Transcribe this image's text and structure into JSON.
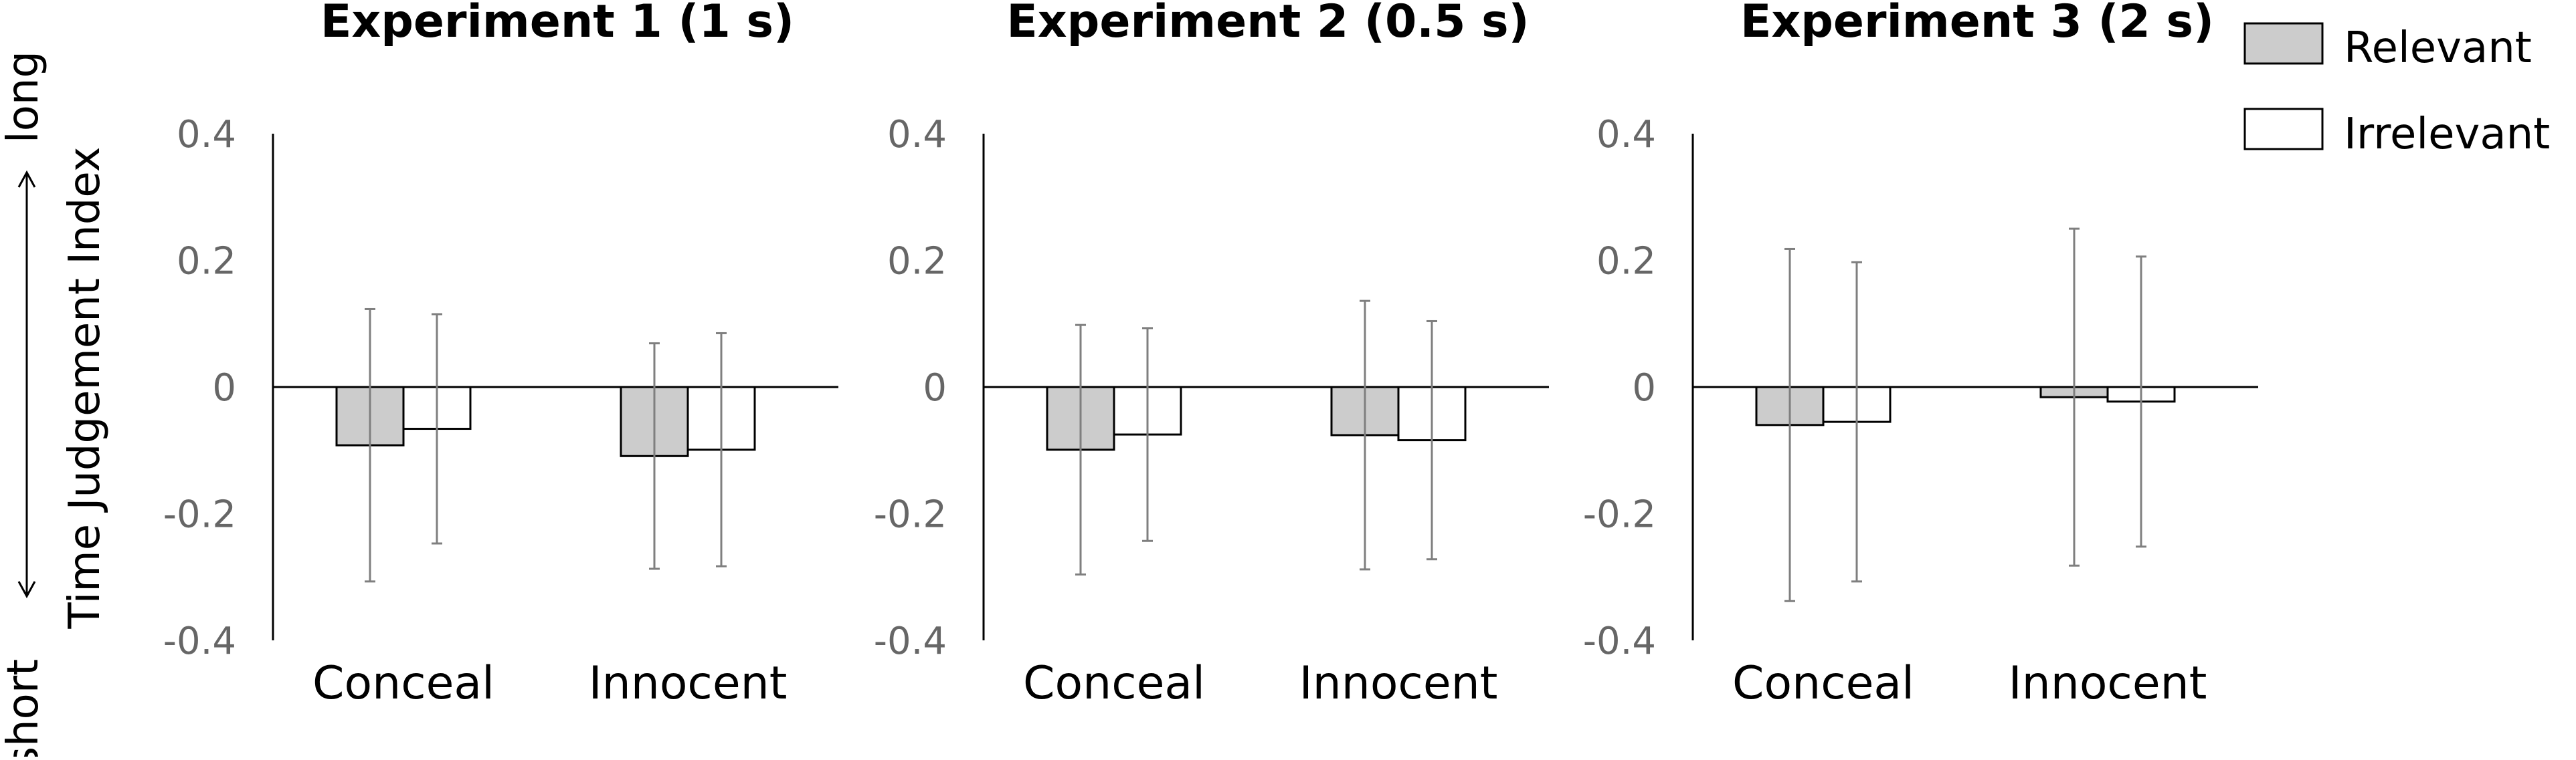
{
  "y_axis": {
    "label": "Time Judgement Index",
    "top_label": "long",
    "bottom_label": "short"
  },
  "legend": [
    {
      "name": "Relevant",
      "color": "#cccccc"
    },
    {
      "name": "Irrelevant",
      "color": "#ffffff"
    }
  ],
  "chart_data": [
    {
      "type": "bar",
      "title": "Experiment 1 (1 s)",
      "categories": [
        "Conceal",
        "Innocent"
      ],
      "ylim": [
        -0.4,
        0.4
      ],
      "yticks": [
        "0.4",
        "0.2",
        "0",
        "-0.2",
        "-0.4"
      ],
      "series": [
        {
          "name": "Relevant",
          "color": "#cccccc",
          "values": [
            -0.092,
            -0.109
          ],
          "error": [
            0.215,
            0.178
          ]
        },
        {
          "name": "Irrelevant",
          "color": "#ffffff",
          "values": [
            -0.066,
            -0.099
          ],
          "error": [
            0.181,
            0.184
          ]
        }
      ]
    },
    {
      "type": "bar",
      "title": "Experiment 2 (0.5 s)",
      "categories": [
        "Conceal",
        "Innocent"
      ],
      "ylim": [
        -0.4,
        0.4
      ],
      "yticks": [
        "0.4",
        "0.2",
        "0",
        "-0.2",
        "-0.4"
      ],
      "series": [
        {
          "name": "Relevant",
          "color": "#cccccc",
          "values": [
            -0.099,
            -0.076
          ],
          "error": [
            0.197,
            0.212
          ]
        },
        {
          "name": "Irrelevant",
          "color": "#ffffff",
          "values": [
            -0.075,
            -0.084
          ],
          "error": [
            0.168,
            0.188
          ]
        }
      ]
    },
    {
      "type": "bar",
      "title": "Experiment 3 (2 s)",
      "categories": [
        "Conceal",
        "Innocent"
      ],
      "ylim": [
        -0.4,
        0.4
      ],
      "yticks": [
        "0.4",
        "0.2",
        "0",
        "-0.2",
        "-0.4"
      ],
      "series": [
        {
          "name": "Relevant",
          "color": "#cccccc",
          "values": [
            -0.06,
            -0.016
          ],
          "error": [
            0.278,
            0.266
          ]
        },
        {
          "name": "Irrelevant",
          "color": "#ffffff",
          "values": [
            -0.055,
            -0.023
          ],
          "error": [
            0.252,
            0.229
          ]
        }
      ]
    }
  ]
}
